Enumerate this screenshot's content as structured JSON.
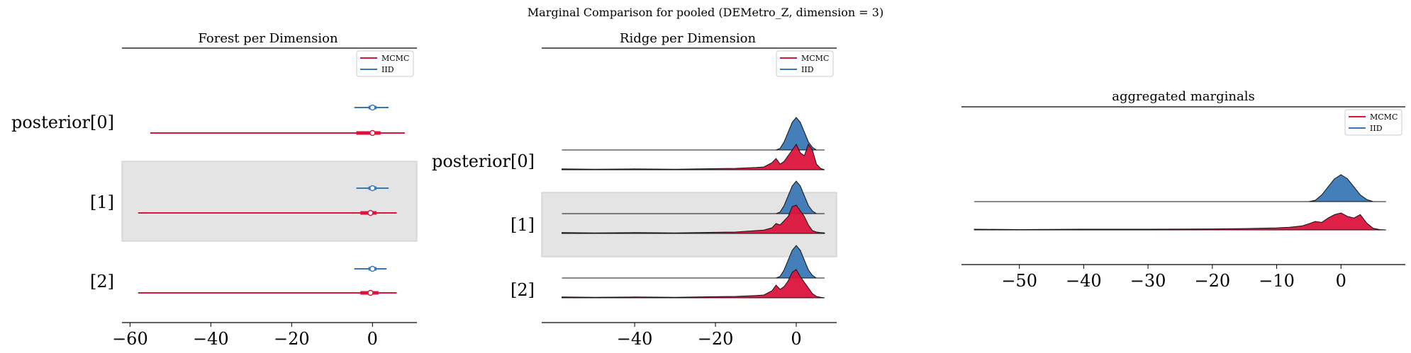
{
  "figure": {
    "suptitle": "Marginal Comparison for pooled (DEMetro_Z, dimension = 3)"
  },
  "colors": {
    "mcmc": "#dc143c",
    "iid": "#3a78b5",
    "band": "#e4e4e4"
  },
  "chart_data": [
    {
      "type": "forest",
      "title": "Forest per Dimension",
      "xlim": [
        -62,
        11
      ],
      "xticks": [
        -60,
        -40,
        -20,
        0
      ],
      "xtick_labels": [
        "−60",
        "−40",
        "−20",
        "0"
      ],
      "row_labels": [
        "posterior[0]",
        "[1]",
        "[2]"
      ],
      "legend": {
        "entries": [
          "MCMC",
          "IID"
        ],
        "loc": "upper right"
      },
      "series": [
        {
          "name": "MCMC",
          "rows": [
            {
              "low": -55,
              "q1": -4,
              "median": 0,
              "q3": 2,
              "high": 8
            },
            {
              "low": -58,
              "q1": -3,
              "median": -0.5,
              "q3": 1,
              "high": 6
            },
            {
              "low": -58,
              "q1": -3,
              "median": -0.5,
              "q3": 1.5,
              "high": 6
            }
          ]
        },
        {
          "name": "IID",
          "rows": [
            {
              "low": -4.5,
              "q1": -1,
              "median": 0,
              "q3": 1,
              "high": 4
            },
            {
              "low": -4,
              "q1": -1,
              "median": 0,
              "q3": 1,
              "high": 4
            },
            {
              "low": -4.5,
              "q1": -1,
              "median": 0,
              "q3": 1,
              "high": 3.5
            }
          ]
        }
      ]
    },
    {
      "type": "ridge",
      "title": "Ridge per Dimension",
      "xlim": [
        -63,
        10
      ],
      "xticks": [
        -40,
        -20,
        0
      ],
      "xtick_labels": [
        "−40",
        "−20",
        "0"
      ],
      "row_labels": [
        "posterior[0]",
        "[1]",
        "[2]"
      ],
      "legend": {
        "entries": [
          "MCMC",
          "IID"
        ],
        "loc": "upper right"
      },
      "x": [
        -58,
        -50,
        -40,
        -30,
        -20,
        -15,
        -10,
        -8,
        -6,
        -5,
        -4,
        -3,
        -2,
        -1,
        0,
        1,
        2,
        3,
        4,
        5,
        6,
        7
      ],
      "series": [
        {
          "name": "IID",
          "rows": [
            [
              0,
              0,
              0,
              0,
              0,
              0,
              0,
              0,
              0,
              0,
              0.05,
              0.25,
              0.55,
              0.85,
              1.0,
              0.85,
              0.55,
              0.25,
              0.08,
              0,
              0,
              0
            ],
            [
              0,
              0,
              0,
              0,
              0,
              0,
              0,
              0,
              0,
              0,
              0.05,
              0.25,
              0.55,
              0.85,
              1.0,
              0.85,
              0.55,
              0.25,
              0.08,
              0,
              0,
              0
            ],
            [
              0,
              0,
              0,
              0,
              0,
              0,
              0,
              0,
              0,
              0,
              0.05,
              0.25,
              0.55,
              0.85,
              1.0,
              0.85,
              0.55,
              0.25,
              0.08,
              0,
              0,
              0
            ]
          ]
        },
        {
          "name": "MCMC",
          "rows": [
            [
              0.03,
              0.02,
              0.03,
              0.02,
              0.04,
              0.05,
              0.08,
              0.1,
              0.25,
              0.4,
              0.2,
              0.3,
              0.5,
              0.7,
              0.9,
              0.6,
              0.5,
              0.9,
              0.7,
              0.2,
              0.05,
              0
            ],
            [
              0.03,
              0.02,
              0.03,
              0.02,
              0.04,
              0.05,
              0.1,
              0.12,
              0.2,
              0.35,
              0.3,
              0.45,
              0.6,
              0.95,
              1.0,
              0.8,
              0.6,
              0.3,
              0.1,
              0.05,
              0.03,
              0.02
            ],
            [
              0.03,
              0.02,
              0.03,
              0.02,
              0.04,
              0.05,
              0.08,
              0.1,
              0.25,
              0.45,
              0.3,
              0.4,
              0.6,
              0.9,
              1.0,
              0.75,
              0.55,
              0.35,
              0.15,
              0.05,
              0.02,
              0
            ]
          ]
        }
      ]
    },
    {
      "type": "ridge",
      "title": "aggregated marginals",
      "xlim": [
        -59,
        10
      ],
      "xticks": [
        -50,
        -40,
        -30,
        -20,
        -10,
        0
      ],
      "xtick_labels": [
        "−50",
        "−40",
        "−30",
        "−20",
        "−10",
        "0"
      ],
      "legend": {
        "entries": [
          "MCMC",
          "IID"
        ],
        "loc": "upper right"
      },
      "x": [
        -57,
        -50,
        -40,
        -30,
        -20,
        -15,
        -10,
        -8,
        -6,
        -5,
        -4,
        -3,
        -2,
        -1,
        0,
        1,
        2,
        3,
        4,
        5,
        6,
        7
      ],
      "series": [
        {
          "name": "IID",
          "values": [
            0,
            0,
            0,
            0,
            0,
            0,
            0,
            0,
            0,
            0,
            0.05,
            0.25,
            0.55,
            0.85,
            1.0,
            0.85,
            0.55,
            0.25,
            0.08,
            0,
            0,
            0
          ]
        },
        {
          "name": "MCMC",
          "values": [
            0.02,
            0.01,
            0.02,
            0.02,
            0.03,
            0.04,
            0.06,
            0.08,
            0.12,
            0.18,
            0.25,
            0.22,
            0.35,
            0.45,
            0.5,
            0.4,
            0.35,
            0.45,
            0.2,
            0.05,
            0.01,
            0
          ]
        }
      ]
    }
  ]
}
